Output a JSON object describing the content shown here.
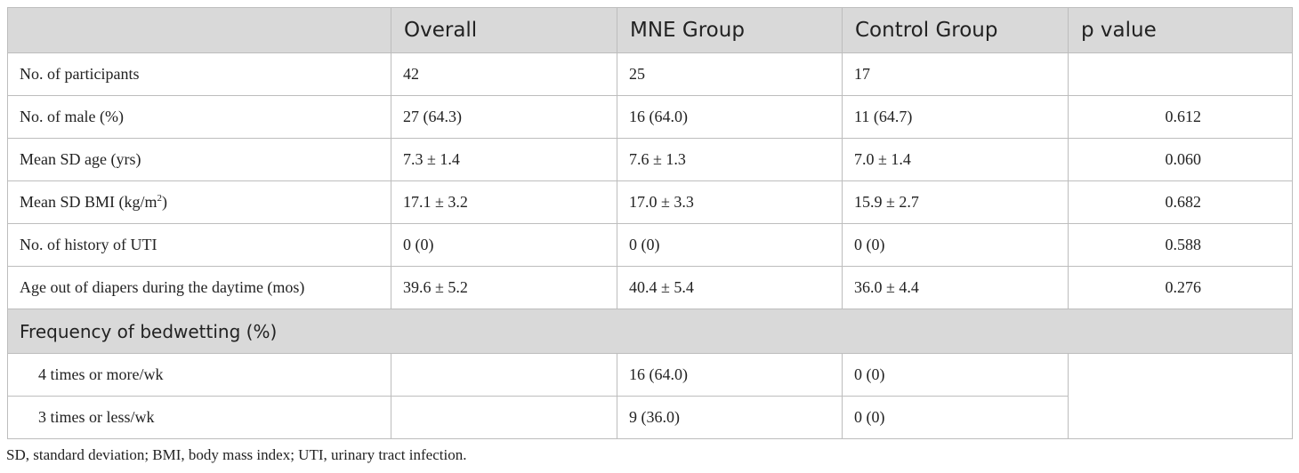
{
  "headers": [
    "",
    "Overall",
    "MNE Group",
    "Control Group",
    "p value"
  ],
  "rows": [
    {
      "label": "No. of participants",
      "overall": "42",
      "mne": "25",
      "control": "17",
      "p": ""
    },
    {
      "label": "No. of male (%)",
      "overall": "27 (64.3)",
      "mne": "16 (64.0)",
      "control": "11 (64.7)",
      "p": "0.612"
    },
    {
      "label": "Mean SD age (yrs)",
      "overall": "7.3 ± 1.4",
      "mne": "7.6 ± 1.3",
      "control": "7.0 ± 1.4",
      "p": "0.060"
    },
    {
      "label_pre": "Mean SD BMI (kg/m",
      "label_sup": "2",
      "label_post": ")",
      "overall": "17.1 ± 3.2",
      "mne": "17.0 ± 3.3",
      "control": "15.9 ± 2.7",
      "p": "0.682"
    },
    {
      "label": "No. of history of UTI",
      "overall": "0 (0)",
      "mne": "0 (0)",
      "control": "0 (0)",
      "p": "0.588"
    },
    {
      "label": "Age out of diapers during the daytime (mos)",
      "overall": "39.6 ± 5.2",
      "mne": "40.4 ± 5.4",
      "control": "36.0 ± 4.4",
      "p": "0.276"
    }
  ],
  "section": {
    "label": "Frequency of bedwetting (%)",
    "rows": [
      {
        "label": "4 times or more/wk",
        "overall": "",
        "mne": "16 (64.0)",
        "control": "0 (0)"
      },
      {
        "label": "3 times or less/wk",
        "overall": "",
        "mne": "9 (36.0)",
        "control": "0 (0)"
      }
    ],
    "p": ""
  },
  "footnote": "SD, standard deviation; BMI, body mass index; UTI, urinary tract infection."
}
